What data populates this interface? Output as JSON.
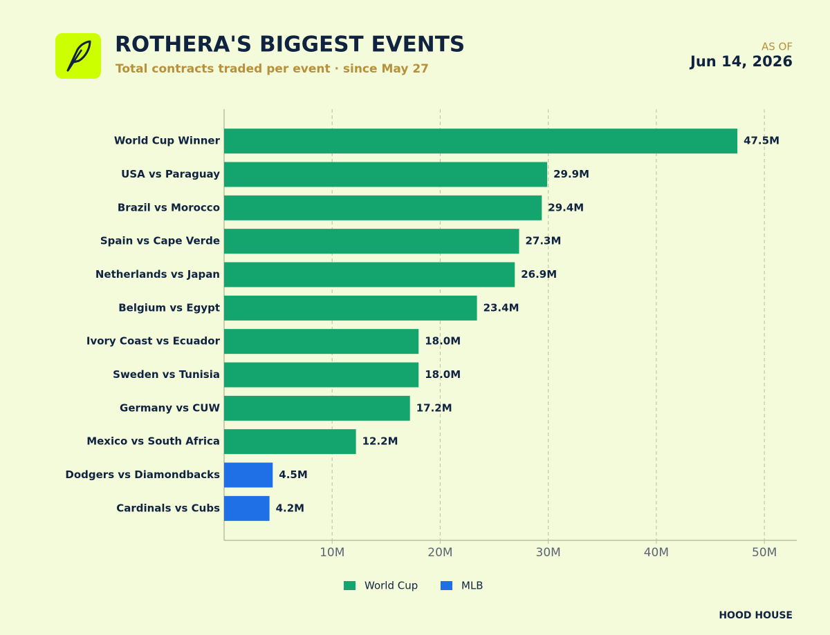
{
  "chart_data": {
    "type": "hbar",
    "title": "ROTHERA'S BIGGEST EVENTS",
    "subtitle": "Total contracts traded per event · since May 27",
    "as_of": "AS OF",
    "date": "Jun 14, 2026",
    "footer": "HOOD HOUSE",
    "categories": [
      "World Cup Winner",
      "USA vs Paraguay",
      "Brazil vs Morocco",
      "Spain vs Cape Verde",
      "Netherlands vs Japan",
      "Belgium vs Egypt",
      "Ivory Coast vs Ecuador",
      "Sweden vs Tunisia",
      "Germany vs CUW",
      "Mexico vs South Africa",
      "Dodgers vs Diamondbacks",
      "Cardinals vs Cubs"
    ],
    "series": [
      {
        "name": "World Cup",
        "color": "#14a46d",
        "values": [
          47500000,
          29900000,
          29400000,
          27300000,
          26900000,
          23400000,
          18000000,
          18000000,
          17200000,
          12200000,
          null,
          null
        ],
        "value_labels": [
          "47.5M",
          "29.9M",
          "29.4M",
          "27.3M",
          "26.9M",
          "23.4M",
          "18.0M",
          "18.0M",
          "17.2M",
          "12.2M",
          null,
          null
        ]
      },
      {
        "name": "MLB",
        "color": "#1f6fe6",
        "values": [
          null,
          null,
          null,
          null,
          null,
          null,
          null,
          null,
          null,
          null,
          4500000,
          4200000
        ],
        "value_labels": [
          null,
          null,
          null,
          null,
          null,
          null,
          null,
          null,
          null,
          null,
          "4.5M",
          "4.2M"
        ]
      }
    ],
    "xlim": [
      0,
      53000000
    ],
    "xticks": [
      {
        "value": 10000000,
        "label": "10M"
      },
      {
        "value": 20000000,
        "label": "20M"
      },
      {
        "value": 30000000,
        "label": "30M"
      },
      {
        "value": 40000000,
        "label": "40M"
      },
      {
        "value": 50000000,
        "label": "50M"
      }
    ],
    "grid": true,
    "legend": "bottom"
  }
}
